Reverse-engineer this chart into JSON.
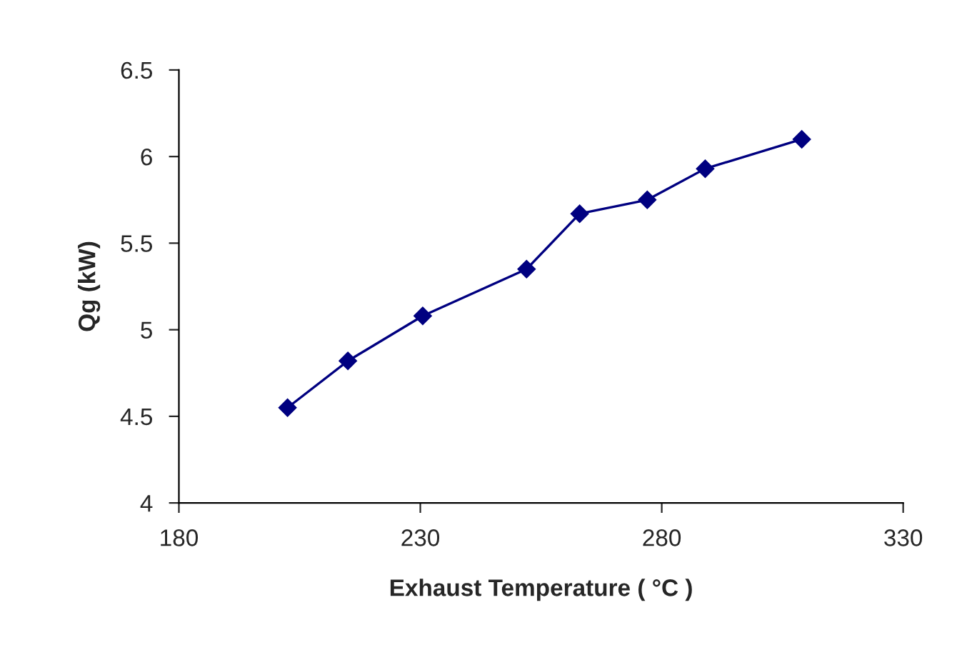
{
  "chart_data": {
    "type": "line",
    "xlabel": "Exhaust Temperature ( °C )",
    "ylabel": "Qg (kW)",
    "x": [
      202.5,
      215,
      230.5,
      252,
      263,
      277,
      289,
      309
    ],
    "series": [
      {
        "color": "#000080",
        "values": [
          4.55,
          4.82,
          5.08,
          5.35,
          5.67,
          5.75,
          5.93,
          6.1
        ]
      }
    ],
    "xlim": [
      180,
      330
    ],
    "xticks": [
      180,
      230,
      280,
      330
    ],
    "ylim": [
      4,
      6.5
    ],
    "yticks": [
      4,
      4.5,
      5,
      5.5,
      6,
      6.5
    ],
    "marker": "diamond",
    "line_style": "solid",
    "grid": false,
    "legend": false
  }
}
